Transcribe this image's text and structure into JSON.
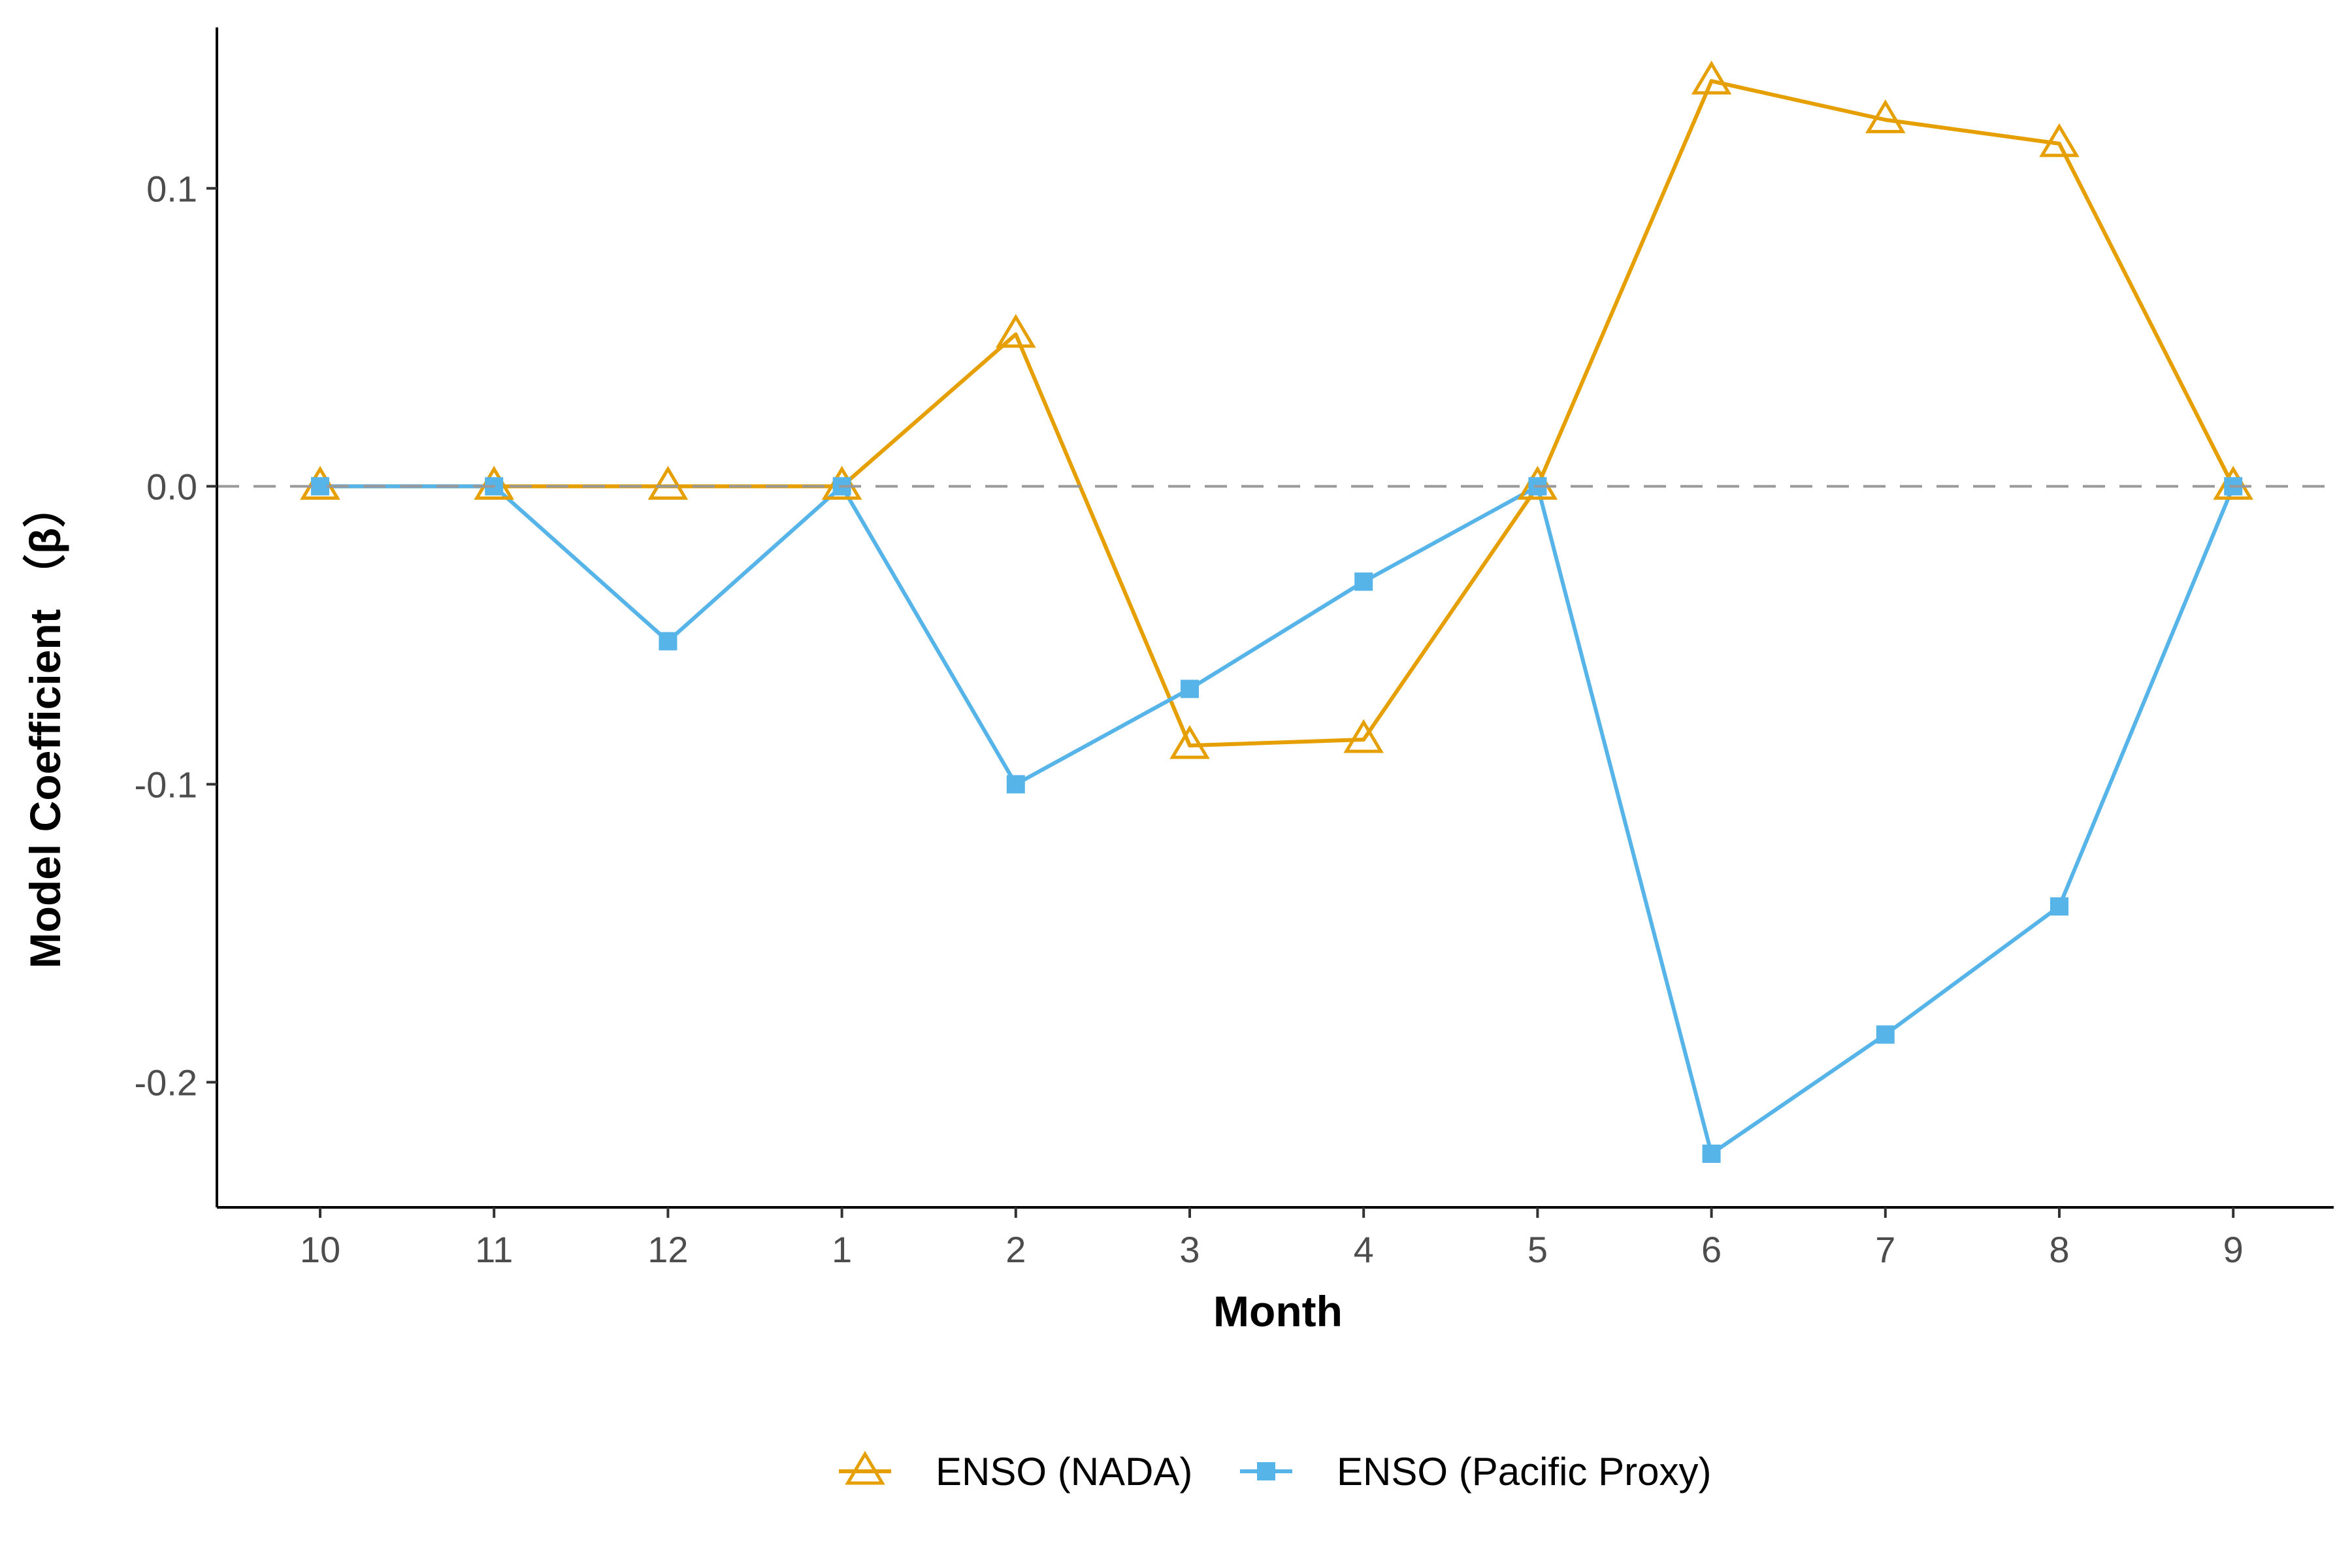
{
  "chart_data": {
    "type": "line",
    "xlabel": "Month",
    "ylabel": "Model Coefficient （β）",
    "categories": [
      "10",
      "11",
      "12",
      "1",
      "2",
      "3",
      "4",
      "5",
      "6",
      "7",
      "8",
      "9"
    ],
    "ylim": [
      -0.242,
      0.154
    ],
    "yticks": [
      -0.2,
      -0.1,
      0.0,
      0.1
    ],
    "ytick_labels": [
      "-0.2",
      "-0.1",
      "0.0",
      "0.1"
    ],
    "reference_line": {
      "y": 0,
      "style": "dashed",
      "color": "#999999"
    },
    "grid": false,
    "legend": {
      "position": "bottom"
    },
    "series": [
      {
        "name": "ENSO (NADA)",
        "color": "#E69F00",
        "marker": "open-triangle",
        "values": [
          0.0,
          0.0,
          0.0,
          0.0,
          0.051,
          -0.087,
          -0.085,
          0.0,
          0.136,
          0.123,
          0.115,
          0.0
        ]
      },
      {
        "name": "ENSO (Pacific Proxy)",
        "color": "#56B4E9",
        "marker": "filled-square",
        "values": [
          0.0,
          0.0,
          -0.052,
          0.0,
          -0.1,
          -0.068,
          -0.032,
          0.0,
          -0.224,
          -0.184,
          -0.141,
          0.0
        ]
      }
    ]
  }
}
